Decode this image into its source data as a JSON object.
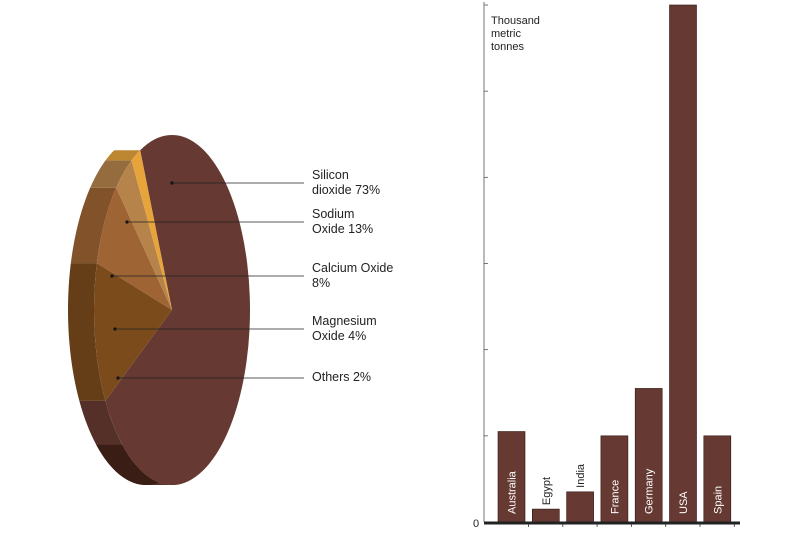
{
  "chart_data": [
    {
      "type": "pie",
      "style": "3d",
      "slices": [
        {
          "label": "Silicon\ndioxide 73%",
          "value": 73,
          "color": "#663a32"
        },
        {
          "label": "Sodium\nOxide 13%",
          "value": 13,
          "color": "#7b4b1c"
        },
        {
          "label": "Calcium Oxide\n8%",
          "value": 8,
          "color": "#9e6434"
        },
        {
          "label": "Magnesium\nOxide 4%",
          "value": 4,
          "color": "#b6844a"
        },
        {
          "label": "Others 2%",
          "value": 2,
          "color": "#e7a43a"
        }
      ]
    },
    {
      "type": "bar",
      "categories": [
        "Australia",
        "Egypt",
        "India",
        "France",
        "Germany",
        "USA",
        "Spain"
      ],
      "values": [
        1.05,
        0.15,
        0.35,
        1.0,
        1.55,
        6.0,
        1.0
      ],
      "ylabel": "Thousand\nmetric\ntonnes",
      "ylim": [
        0,
        6
      ],
      "y_tick_labels": [
        "0"
      ],
      "bar_color": "#663a32",
      "grid": false
    }
  ]
}
